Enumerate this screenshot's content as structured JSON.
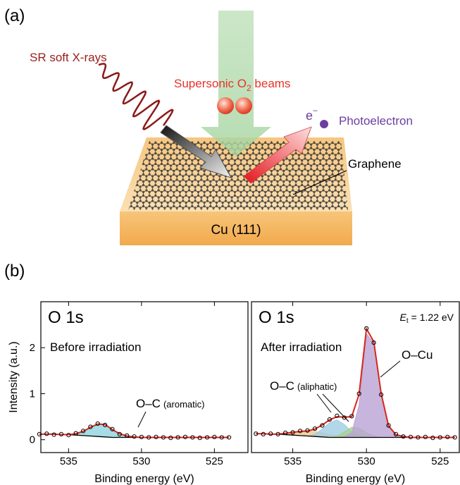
{
  "figure": {
    "panel_a": {
      "label": "(a)",
      "xray": "SR soft X-rays",
      "beam": {
        "text": "Supersonic O",
        "subscript": "2",
        "suffix": " beams"
      },
      "electron": {
        "symbol": "e",
        "superscript": "−"
      },
      "photoelectron": "Photoelectron",
      "graphene": "Graphene",
      "substrate": "Cu (111)"
    },
    "panel_b": {
      "label": "(b)"
    }
  },
  "chart_data": [
    {
      "type": "line",
      "title": "O 1s",
      "subtitle": "Before irradiation",
      "xlabel": "Binding energy (eV)",
      "ylabel": "Intensity (a.u.)",
      "x": [
        537,
        536.5,
        536,
        535.5,
        535,
        534.5,
        534,
        533.5,
        533,
        532.5,
        532,
        531.5,
        531,
        530.5,
        530,
        529.5,
        529,
        528.5,
        528,
        527.5,
        527,
        526.5,
        526,
        525.5,
        525,
        524.5,
        524
      ],
      "xlim": [
        536.9,
        522.7
      ],
      "ylim": [
        -0.28,
        3.0
      ],
      "xticks": [
        535,
        530,
        525
      ],
      "yticks": [
        0,
        1,
        2
      ],
      "annotations": [
        {
          "label": "O–C",
          "detail": "(aromatic)"
        }
      ],
      "series": [
        {
          "style": "points",
          "color": "#000000",
          "values": [
            0.12,
            0.13,
            0.11,
            0.12,
            0.1,
            0.14,
            0.19,
            0.28,
            0.35,
            0.32,
            0.23,
            0.12,
            0.09,
            0.07,
            0.06,
            0.05,
            0.06,
            0.05,
            0.04,
            0.05,
            0.06,
            0.05,
            0.04,
            0.05,
            0.06,
            0.05,
            0.05
          ]
        },
        {
          "style": "line",
          "color": "#d9261c",
          "values": [
            0.12,
            0.12,
            0.12,
            0.11,
            0.11,
            0.13,
            0.18,
            0.27,
            0.34,
            0.33,
            0.22,
            0.13,
            0.08,
            0.06,
            0.05,
            0.05,
            0.05,
            0.05,
            0.05,
            0.05,
            0.05,
            0.05,
            0.05,
            0.05,
            0.05,
            0.05,
            0.05
          ]
        },
        {
          "style": "baseline",
          "color": "#000000",
          "values": [
            0.12,
            0.12,
            0.12,
            0.11,
            0.11,
            0.1,
            0.09,
            0.08,
            0.07,
            0.06,
            0.05,
            0.05,
            0.05,
            0.05,
            0.05,
            0.05,
            0.05,
            0.05,
            0.05,
            0.05,
            0.05,
            0.05,
            0.05,
            0.05,
            0.05,
            0.05,
            0.05
          ]
        },
        {
          "style": "area",
          "color": "#8fd3df",
          "values": [
            0,
            0,
            0,
            0,
            0,
            0.03,
            0.09,
            0.19,
            0.27,
            0.27,
            0.17,
            0.08,
            0.03,
            0.01,
            0,
            0,
            0,
            0,
            0,
            0,
            0,
            0,
            0,
            0,
            0,
            0,
            0
          ]
        }
      ]
    },
    {
      "type": "line",
      "title": "O 1s",
      "subtitle": "After irradiation",
      "xlabel": "Binding energy (eV)",
      "energy": {
        "symbol": "E",
        "subscript": "t",
        "value": "= 1.22 eV"
      },
      "x": [
        537.5,
        537,
        536.5,
        536,
        535.5,
        535,
        534.5,
        534,
        533.5,
        533,
        532.5,
        532,
        531.5,
        531,
        530.5,
        530,
        529.5,
        529,
        528.5,
        528,
        527.5,
        527,
        526.5,
        526,
        525.5,
        525,
        524.5,
        524
      ],
      "xlim": [
        537.8,
        523.7
      ],
      "ylim": [
        -0.28,
        3.0
      ],
      "xticks": [
        535,
        530,
        525
      ],
      "annotations": [
        {
          "label": "O–C",
          "detail": "(aliphatic)"
        },
        {
          "label": "O–Cu"
        }
      ],
      "series": [
        {
          "style": "points",
          "color": "#000000",
          "values": [
            0.13,
            0.12,
            0.13,
            0.12,
            0.15,
            0.16,
            0.19,
            0.2,
            0.24,
            0.31,
            0.44,
            0.52,
            0.48,
            0.51,
            1.0,
            2.42,
            2.11,
            0.98,
            0.31,
            0.12,
            0.07,
            0.06,
            0.05,
            0.06,
            0.04,
            0.05,
            0.06,
            0.05
          ]
        },
        {
          "style": "line",
          "color": "#d9261c",
          "values": [
            0.13,
            0.13,
            0.12,
            0.12,
            0.14,
            0.16,
            0.18,
            0.19,
            0.23,
            0.32,
            0.43,
            0.5,
            0.49,
            0.5,
            0.99,
            2.41,
            2.13,
            1.0,
            0.3,
            0.11,
            0.07,
            0.05,
            0.05,
            0.05,
            0.05,
            0.05,
            0.05,
            0.05
          ]
        },
        {
          "style": "baseline",
          "color": "#000000",
          "values": [
            0.13,
            0.13,
            0.12,
            0.12,
            0.11,
            0.1,
            0.09,
            0.08,
            0.07,
            0.06,
            0.05,
            0.05,
            0.05,
            0.05,
            0.05,
            0.05,
            0.05,
            0.05,
            0.05,
            0.05,
            0.05,
            0.05,
            0.05,
            0.05,
            0.05,
            0.05,
            0.05,
            0.05
          ]
        },
        {
          "style": "area",
          "color": "#f3c58c",
          "values": [
            0,
            0,
            0,
            0,
            0.03,
            0.06,
            0.09,
            0.11,
            0.11,
            0.09,
            0.06,
            0.04,
            0.02,
            0.01,
            0,
            0,
            0,
            0,
            0,
            0,
            0,
            0,
            0,
            0,
            0,
            0,
            0,
            0
          ]
        },
        {
          "style": "area",
          "color": "#9fcde3",
          "values": [
            0,
            0,
            0,
            0,
            0,
            0,
            0,
            0,
            0.05,
            0.17,
            0.32,
            0.38,
            0.28,
            0.12,
            0.04,
            0.01,
            0,
            0,
            0,
            0,
            0,
            0,
            0,
            0,
            0,
            0,
            0,
            0
          ]
        },
        {
          "style": "area",
          "color": "#a6d28c",
          "values": [
            0,
            0,
            0,
            0,
            0,
            0,
            0,
            0,
            0,
            0,
            0,
            0.03,
            0.12,
            0.22,
            0.2,
            0.1,
            0.03,
            0,
            0,
            0,
            0,
            0,
            0,
            0,
            0,
            0,
            0,
            0
          ]
        },
        {
          "style": "area",
          "color": "#b9a2d4",
          "values": [
            0,
            0,
            0,
            0,
            0,
            0,
            0,
            0,
            0,
            0,
            0,
            0,
            0.02,
            0.1,
            0.7,
            2.25,
            2.05,
            0.95,
            0.25,
            0.06,
            0.02,
            0,
            0,
            0,
            0,
            0,
            0,
            0
          ]
        }
      ]
    }
  ]
}
